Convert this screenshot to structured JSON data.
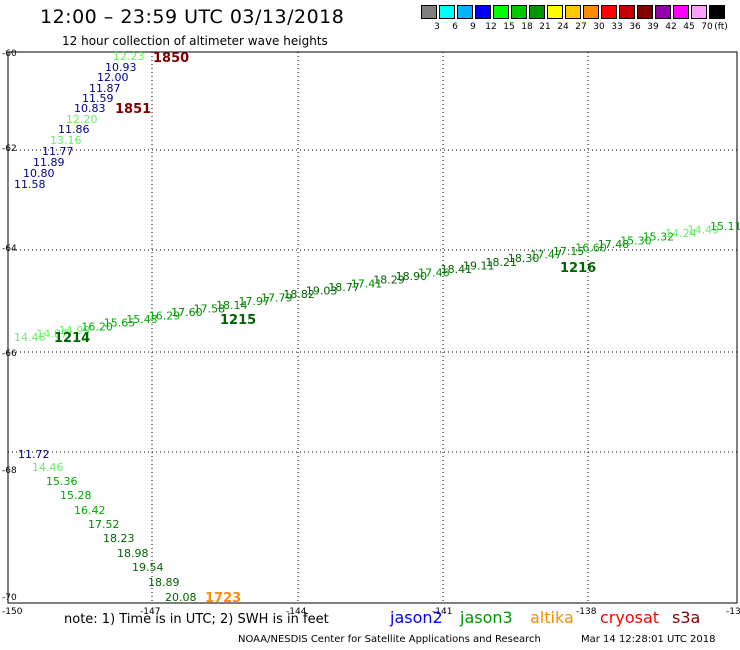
{
  "header": {
    "title": "12:00 – 23:59 UTC 03/13/2018",
    "subtitle": "12 hour collection of altimeter wave heights"
  },
  "colorbar": {
    "unit": "(ft)",
    "bins": [
      {
        "color": "#7f7f7f",
        "label": "3"
      },
      {
        "color": "#00ffff",
        "label": "6"
      },
      {
        "color": "#00b4ff",
        "label": "9"
      },
      {
        "color": "#0000ff",
        "label": "12"
      },
      {
        "color": "#00ff00",
        "label": "15"
      },
      {
        "color": "#00c800",
        "label": "18"
      },
      {
        "color": "#009600",
        "label": "21"
      },
      {
        "color": "#ffff00",
        "label": "24"
      },
      {
        "color": "#ffc800",
        "label": "27"
      },
      {
        "color": "#ff8c00",
        "label": "30"
      },
      {
        "color": "#ff0000",
        "label": "33"
      },
      {
        "color": "#c80000",
        "label": "36"
      },
      {
        "color": "#820000",
        "label": "39"
      },
      {
        "color": "#9600aa",
        "label": "42"
      },
      {
        "color": "#ff00ff",
        "label": "45"
      },
      {
        "color": "#ffa0ff",
        "label": "70"
      },
      {
        "color": "#000000",
        "label": ""
      }
    ]
  },
  "axes": {
    "lat_labels": [
      "-60",
      "-62",
      "-64",
      "-66",
      "-68",
      "-70"
    ],
    "lon_labels": [
      "-150",
      "-147",
      "-144",
      "-141",
      "-138",
      "-13"
    ]
  },
  "tracks": [
    {
      "name": "track-1850",
      "color": "#00008b",
      "time_label": "1850",
      "time_color": "#7f0000",
      "points": [
        {
          "v": "12.23",
          "c": "#66ee66"
        },
        {
          "v": "10.93",
          "c": "#00008b"
        },
        {
          "v": "12.00",
          "c": "#00008b"
        },
        {
          "v": "11.87",
          "c": "#00008b"
        },
        {
          "v": "11.59",
          "c": "#00008b"
        },
        {
          "v": "10.83",
          "c": "#00008b"
        }
      ]
    },
    {
      "name": "track-1851",
      "color": "#00008b",
      "time_label": "1851",
      "time_color": "#7f0000",
      "points": [
        {
          "v": "12.20",
          "c": "#66ee66"
        },
        {
          "v": "11.86",
          "c": "#00008b"
        },
        {
          "v": "13.16",
          "c": "#66ee66"
        },
        {
          "v": "11.77",
          "c": "#00008b"
        },
        {
          "v": "11.89",
          "c": "#00008b"
        },
        {
          "v": "10.80",
          "c": "#00008b"
        },
        {
          "v": "11.58",
          "c": "#00008b"
        }
      ]
    },
    {
      "name": "track-1214-1216",
      "time_labels": [
        "1214",
        "1215",
        "1216"
      ],
      "time_color": "#006400",
      "points": [
        {
          "v": "14.46",
          "c": "#66ee66"
        },
        {
          "v": "14.87",
          "c": "#66ee66"
        },
        {
          "v": "14.99",
          "c": "#66ee66"
        },
        {
          "v": "16.20",
          "c": "#00aa00"
        },
        {
          "v": "15.65",
          "c": "#00aa00"
        },
        {
          "v": "15.43",
          "c": "#00aa00"
        },
        {
          "v": "16.29",
          "c": "#00aa00"
        },
        {
          "v": "17.60",
          "c": "#008800"
        },
        {
          "v": "17.58",
          "c": "#008800"
        },
        {
          "v": "18.14",
          "c": "#008800"
        },
        {
          "v": "17.97",
          "c": "#008800"
        },
        {
          "v": "17.79",
          "c": "#008800"
        },
        {
          "v": "18.82",
          "c": "#006400"
        },
        {
          "v": "19.03",
          "c": "#006400"
        },
        {
          "v": "18.77",
          "c": "#006400"
        },
        {
          "v": "17.41",
          "c": "#008800"
        },
        {
          "v": "18.29",
          "c": "#006400"
        },
        {
          "v": "18.90",
          "c": "#006400"
        },
        {
          "v": "17.46",
          "c": "#008800"
        },
        {
          "v": "18.41",
          "c": "#006400"
        },
        {
          "v": "19.11",
          "c": "#006400"
        },
        {
          "v": "18.21",
          "c": "#006400"
        },
        {
          "v": "18.30",
          "c": "#006400"
        },
        {
          "v": "17.47",
          "c": "#008800"
        },
        {
          "v": "17.15",
          "c": "#008800"
        },
        {
          "v": "16.60",
          "c": "#00aa00"
        },
        {
          "v": "17.48",
          "c": "#008800"
        },
        {
          "v": "15.30",
          "c": "#00aa00"
        },
        {
          "v": "15.32",
          "c": "#00aa00"
        },
        {
          "v": "14.24",
          "c": "#66ee66"
        },
        {
          "v": "14.49",
          "c": "#66ee66"
        },
        {
          "v": "15.11",
          "c": "#00aa00"
        }
      ]
    },
    {
      "name": "track-1723",
      "time_label": "1723",
      "time_color": "#ff8c00",
      "points": [
        {
          "v": "11.72",
          "c": "#00008b"
        },
        {
          "v": "14.46",
          "c": "#66ee66"
        },
        {
          "v": "15.36",
          "c": "#00aa00"
        },
        {
          "v": "15.28",
          "c": "#00aa00"
        },
        {
          "v": "16.42",
          "c": "#00aa00"
        },
        {
          "v": "17.52",
          "c": "#008800"
        },
        {
          "v": "18.23",
          "c": "#006400"
        },
        {
          "v": "18.98",
          "c": "#006400"
        },
        {
          "v": "19.54",
          "c": "#006400"
        },
        {
          "v": "18.89",
          "c": "#006400"
        },
        {
          "v": "20.08",
          "c": "#006400"
        }
      ]
    }
  ],
  "footer": {
    "note": "note: 1) Time is in UTC; 2) SWH is in feet",
    "credit": "NOAA/NESDIS Center for Satellite Applications and Research",
    "timestamp": "Mar 14 12:28:01 UTC 2018"
  },
  "satellites": [
    {
      "name": "jason2",
      "color": "#0000ff"
    },
    {
      "name": "jason3",
      "color": "#009600"
    },
    {
      "name": "altika",
      "color": "#ff8c00"
    },
    {
      "name": "cryosat",
      "color": "#ff0000"
    },
    {
      "name": "s3a",
      "color": "#820000"
    }
  ]
}
